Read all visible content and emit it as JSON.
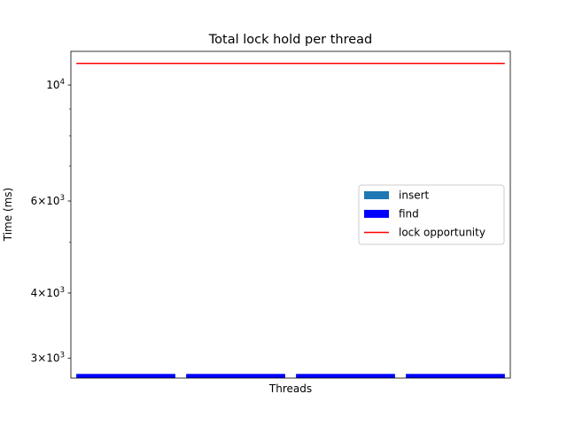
{
  "chart_data": {
    "type": "bar",
    "title": "Total lock hold per thread",
    "xlabel": "Threads",
    "ylabel": "Time (ms)",
    "yscale": "log",
    "ylim": [
      2750,
      11600
    ],
    "categories": [
      "",
      "",
      "",
      ""
    ],
    "series": [
      {
        "name": "insert",
        "kind": "bar",
        "color": "#1f77b4",
        "values": [
          2800,
          2800,
          2800,
          2800
        ]
      },
      {
        "name": "find",
        "kind": "bar",
        "color": "#0000ff",
        "values": [
          2800,
          2800,
          2800,
          2800
        ]
      },
      {
        "name": "lock opportunity",
        "kind": "line",
        "color": "#ff0000",
        "value": 11000
      }
    ],
    "yticks": [
      {
        "value": 3000,
        "mantissa": "3",
        "base": "10",
        "exp": "3"
      },
      {
        "value": 4000,
        "mantissa": "4",
        "base": "10",
        "exp": "3"
      },
      {
        "value": 6000,
        "mantissa": "6",
        "base": "10",
        "exp": "3"
      },
      {
        "value": 10000,
        "mantissa": "",
        "base": "10",
        "exp": "4"
      }
    ],
    "minor_yticks": [
      5000,
      7000,
      8000,
      9000
    ],
    "legend": {
      "position": "center-right"
    },
    "grid": false
  }
}
